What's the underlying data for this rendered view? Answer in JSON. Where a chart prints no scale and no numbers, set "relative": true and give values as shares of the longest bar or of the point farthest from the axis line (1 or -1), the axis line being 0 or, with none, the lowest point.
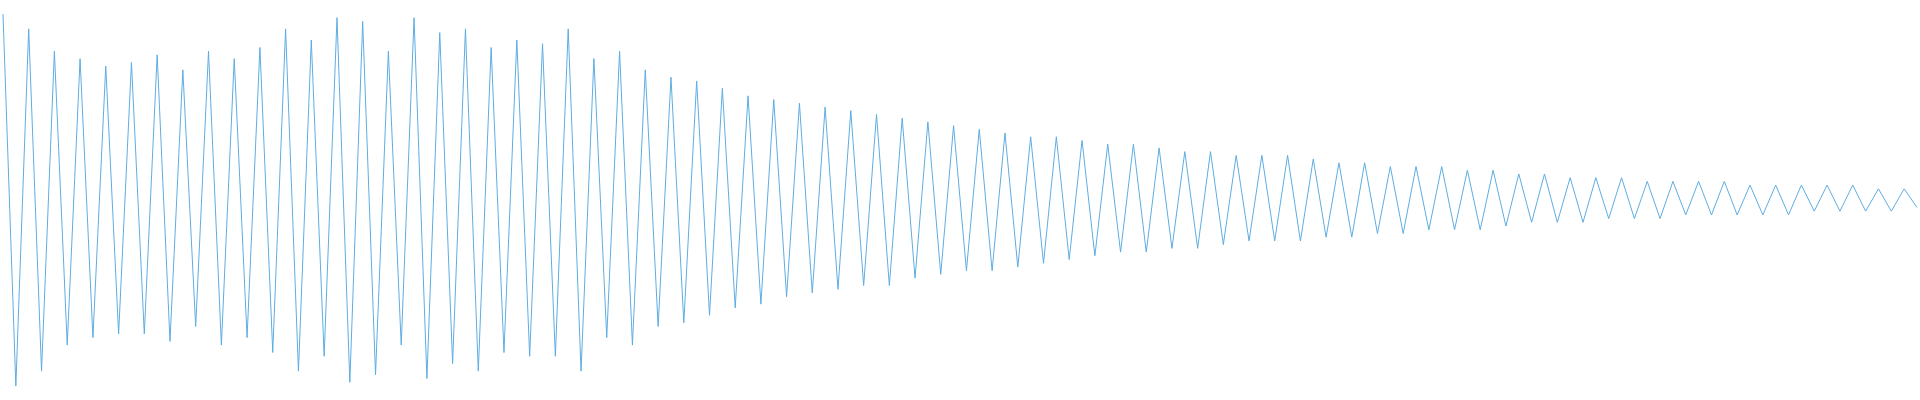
{
  "chart_data": {
    "type": "line",
    "relative": true,
    "marker": "none",
    "line_style": "solid",
    "grid": false,
    "categories": [
      null,
      null,
      null,
      null,
      null,
      null,
      null,
      null,
      null,
      null,
      null,
      null,
      null,
      null,
      null,
      null,
      null,
      null,
      null,
      null,
      null,
      null,
      null,
      null,
      null,
      null,
      null,
      null,
      null,
      null,
      null,
      null,
      null,
      null,
      null,
      null,
      null,
      null,
      null,
      null,
      null,
      null,
      null,
      null,
      null,
      null,
      null,
      null,
      null,
      null,
      null,
      null,
      null,
      null,
      null,
      null,
      null,
      null,
      null,
      null,
      null,
      null,
      null,
      null,
      null,
      null,
      null,
      null,
      null,
      null,
      null,
      null,
      null,
      null,
      null,
      null,
      null,
      null,
      null,
      null,
      null,
      null,
      null,
      null,
      null,
      null,
      null,
      null,
      null,
      null,
      null,
      null,
      null,
      null,
      null,
      null,
      null,
      null,
      null,
      null,
      null,
      null,
      null,
      null,
      null,
      null,
      null,
      null,
      null,
      null,
      null,
      null,
      null,
      null,
      null,
      null,
      null,
      null,
      null,
      null,
      null,
      null,
      null,
      null,
      null,
      null,
      null,
      null,
      null,
      null,
      null,
      null,
      null,
      null,
      null,
      null,
      null,
      null,
      null,
      null,
      null,
      null,
      null,
      null,
      null,
      null,
      null,
      null,
      null,
      null
    ],
    "series": [
      {
        "color": "#5eade2",
        "values": [
          1,
          0,
          0.96,
          0.04,
          0.9,
          0.11,
          0.88,
          0.13,
          0.86,
          0.14,
          0.87,
          0.14,
          0.89,
          0.12,
          0.85,
          0.16,
          0.9,
          0.11,
          0.88,
          0.13,
          0.91,
          0.09,
          0.96,
          0.04,
          0.93,
          0.08,
          0.99,
          0.01,
          0.98,
          0.03,
          0.9,
          0.11,
          0.99,
          0.02,
          0.95,
          0.06,
          0.96,
          0.04,
          0.91,
          0.09,
          0.93,
          0.08,
          0.92,
          0.08,
          0.96,
          0.04,
          0.88,
          0.13,
          0.9,
          0.11,
          0.85,
          0.16,
          0.83,
          0.17,
          0.82,
          0.19,
          0.8,
          0.21,
          0.78,
          0.22,
          0.77,
          0.24,
          0.76,
          0.25,
          0.75,
          0.26,
          0.74,
          0.27,
          0.73,
          0.27,
          0.72,
          0.29,
          0.71,
          0.3,
          0.7,
          0.31,
          0.69,
          0.31,
          0.68,
          0.32,
          0.67,
          0.33,
          0.67,
          0.34,
          0.66,
          0.35,
          0.65,
          0.36,
          0.65,
          0.36,
          0.64,
          0.37,
          0.63,
          0.37,
          0.63,
          0.38,
          0.62,
          0.39,
          0.62,
          0.39,
          0.62,
          0.39,
          0.61,
          0.4,
          0.6,
          0.4,
          0.6,
          0.41,
          0.59,
          0.41,
          0.59,
          0.42,
          0.59,
          0.42,
          0.58,
          0.42,
          0.58,
          0.43,
          0.57,
          0.44,
          0.57,
          0.44,
          0.56,
          0.44,
          0.56,
          0.45,
          0.56,
          0.45,
          0.55,
          0.45,
          0.55,
          0.46,
          0.55,
          0.46,
          0.55,
          0.46,
          0.54,
          0.46,
          0.54,
          0.46,
          0.54,
          0.47,
          0.54,
          0.47,
          0.54,
          0.47,
          0.53,
          0.47,
          0.53,
          0.48
        ]
      }
    ]
  }
}
